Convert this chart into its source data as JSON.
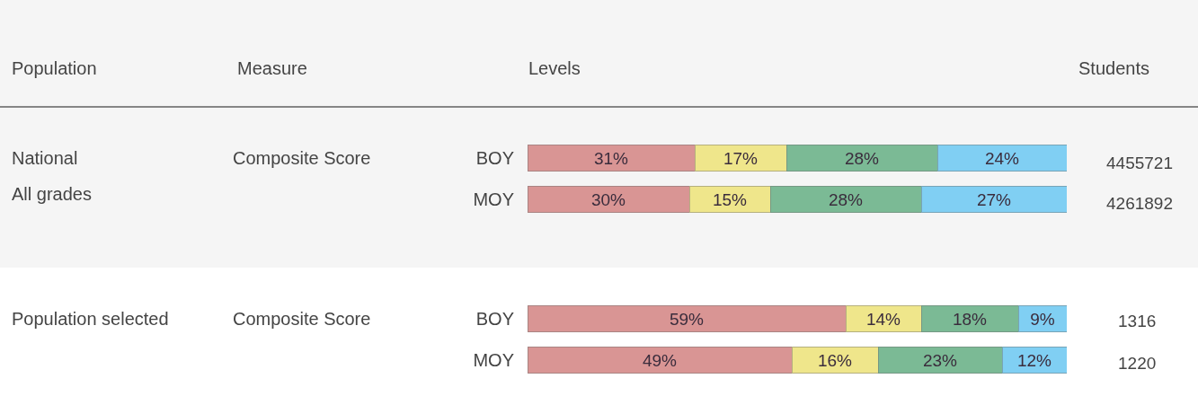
{
  "chart_data": [
    {
      "type": "bar",
      "orientation": "horizontal",
      "stacked": true,
      "categories": [
        "BOY",
        "MOY"
      ],
      "series": [
        {
          "color": "#d99594",
          "values": [
            31,
            30
          ],
          "value_labels": [
            "31%",
            "30%"
          ]
        },
        {
          "color": "#efe68b",
          "values": [
            17,
            15
          ],
          "value_labels": [
            "17%",
            "15%"
          ]
        },
        {
          "color": "#7bba95",
          "values": [
            28,
            28
          ],
          "value_labels": [
            "28%",
            "28%"
          ]
        },
        {
          "color": "#80cff3",
          "values": [
            24,
            27
          ],
          "value_labels": [
            "24%",
            "27%"
          ]
        }
      ],
      "xlim": [
        0,
        100
      ],
      "tick_labels": "y",
      "annotations": [
        "Population",
        "Measure",
        "Levels",
        "Students",
        "National",
        "All grades",
        "Composite Score",
        "4455721",
        "4261892"
      ]
    },
    {
      "type": "bar",
      "orientation": "horizontal",
      "stacked": true,
      "categories": [
        "BOY",
        "MOY"
      ],
      "series": [
        {
          "color": "#d99594",
          "values": [
            59,
            49
          ],
          "value_labels": [
            "59%",
            "49%"
          ]
        },
        {
          "color": "#efe68b",
          "values": [
            14,
            16
          ],
          "value_labels": [
            "14%",
            "16%"
          ]
        },
        {
          "color": "#7bba95",
          "values": [
            18,
            23
          ],
          "value_labels": [
            "18%",
            "23%"
          ]
        },
        {
          "color": "#80cff3",
          "values": [
            9,
            12
          ],
          "value_labels": [
            "9%",
            "12%"
          ]
        }
      ],
      "xlim": [
        0,
        100
      ],
      "tick_labels": "y",
      "annotations": [
        "Population selected",
        "Composite Score",
        "1316",
        "1220"
      ]
    }
  ]
}
